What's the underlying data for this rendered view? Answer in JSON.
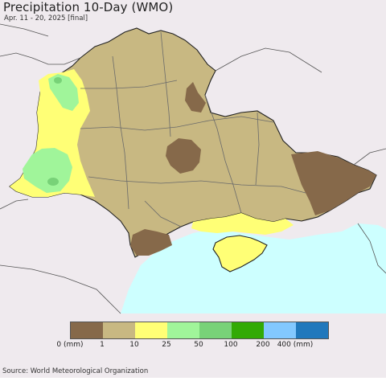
{
  "title": "Precipitation 10-Day (WMO)",
  "subtitle": "Apr. 11 - 20, 2025 [final]",
  "source": "Source: World Meteorological Organization",
  "legend": {
    "labels": [
      "0 (mm)",
      "1",
      "10",
      "25",
      "50",
      "100",
      "200",
      "400 (mm)"
    ],
    "colors": [
      "#86694a",
      "#c8b882",
      "#ffff76",
      "#a0f59a",
      "#78d278",
      "#32aa05",
      "#82c8ff",
      "#2078bc"
    ]
  },
  "colors": {
    "sea": "#cdffff",
    "outside_land": "#efeaee",
    "country_border": "#222222",
    "oblast_border": "#6a6a6a"
  }
}
